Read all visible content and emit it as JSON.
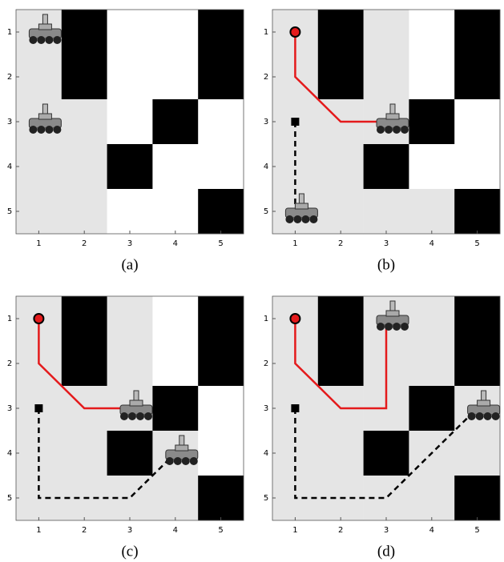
{
  "panels": [
    {
      "caption": "(a)",
      "xticks": [
        "1",
        "2",
        "3",
        "4",
        "5"
      ],
      "yticks": [
        "1",
        "2",
        "3",
        "4",
        "5"
      ]
    },
    {
      "caption": "(b)",
      "xticks": [
        "1",
        "2",
        "3",
        "4",
        "5"
      ],
      "yticks": [
        "1",
        "2",
        "3",
        "4",
        "5"
      ]
    },
    {
      "caption": "(c)",
      "xticks": [
        "1",
        "2",
        "3",
        "4",
        "5"
      ],
      "yticks": [
        "1",
        "2",
        "3",
        "4",
        "5"
      ]
    },
    {
      "caption": "(d)",
      "xticks": [
        "1",
        "2",
        "3",
        "4",
        "5"
      ],
      "yticks": [
        "1",
        "2",
        "3",
        "4",
        "5"
      ]
    }
  ]
}
